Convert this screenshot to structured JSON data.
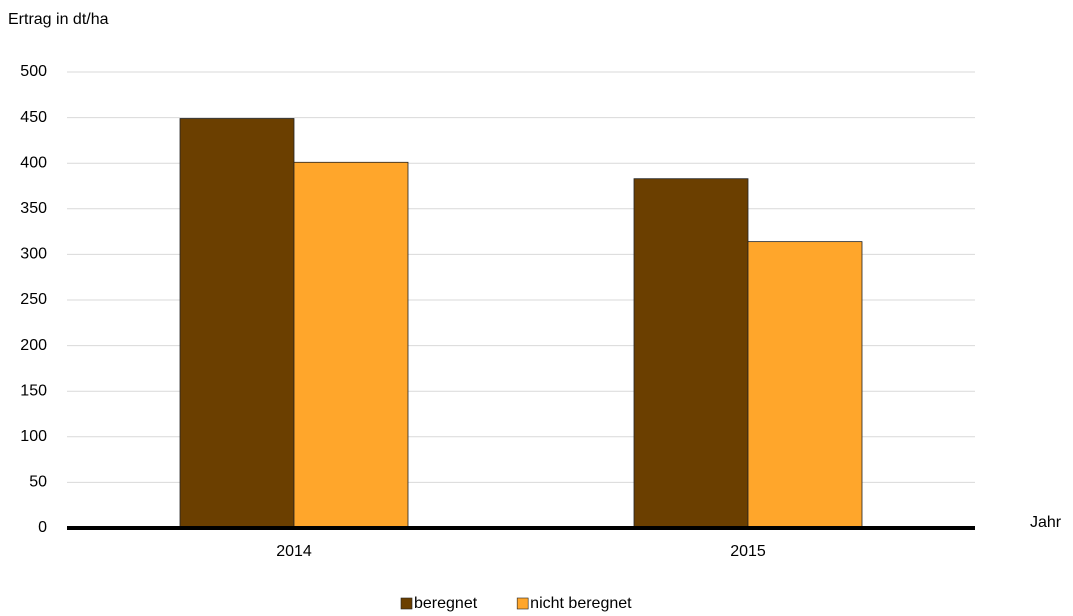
{
  "chart_data": {
    "type": "bar",
    "y_label": "Ertrag in dt/ha",
    "x_label": "Jahr",
    "categories": [
      "2014",
      "2015"
    ],
    "series": [
      {
        "name": "beregnet",
        "color": "#6b3f00",
        "values": [
          449,
          383
        ]
      },
      {
        "name": "nicht beregnet",
        "color": "#ffa62b",
        "values": [
          401,
          314
        ]
      }
    ],
    "ylim": [
      0,
      500
    ],
    "yticks": [
      0,
      50,
      100,
      150,
      200,
      250,
      300,
      350,
      400,
      450,
      500
    ],
    "grid": true,
    "legend": "bottom"
  }
}
